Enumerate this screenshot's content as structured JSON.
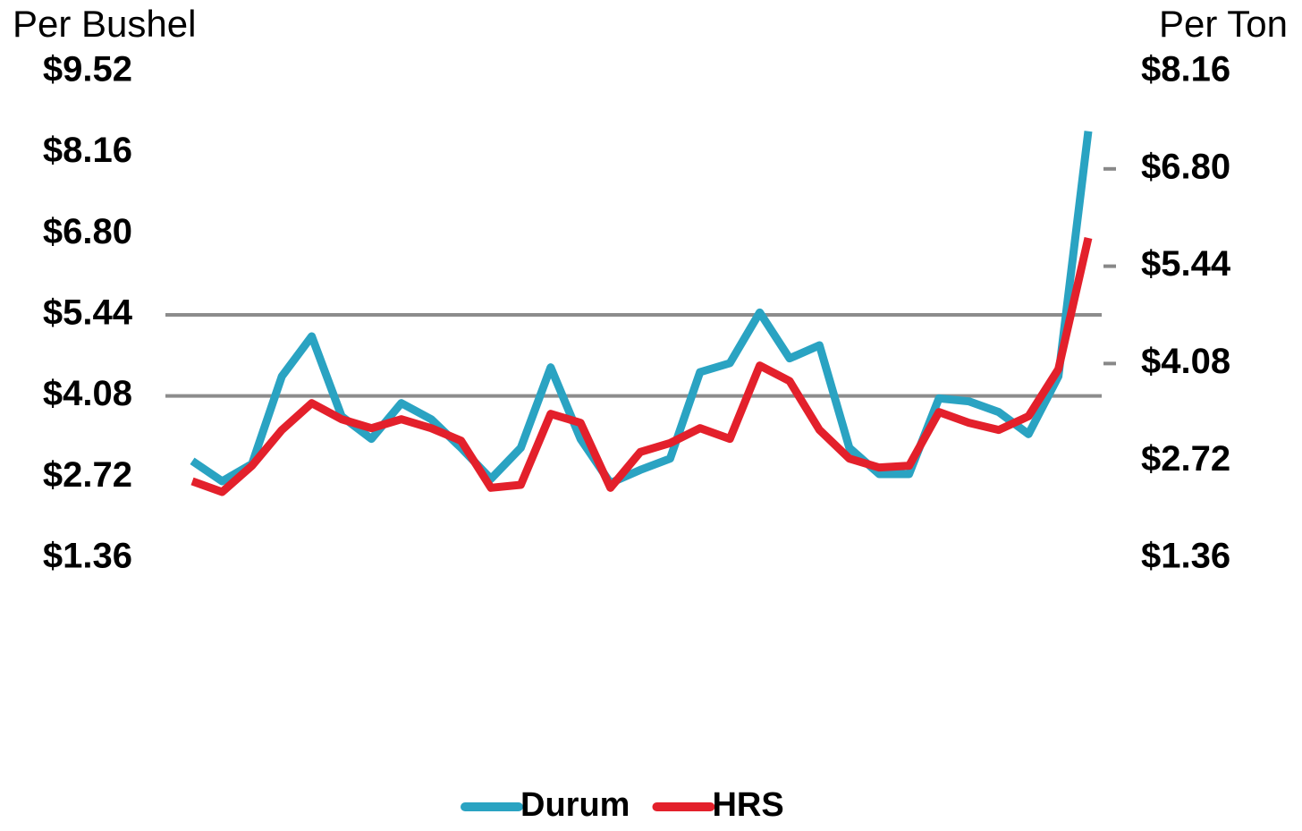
{
  "chart_data": {
    "type": "line",
    "y_label": "Per Bushel",
    "y2_label": "Per Ton",
    "categories": [
      null,
      null,
      null,
      null,
      null,
      null,
      null,
      null,
      null,
      null,
      null,
      null,
      null,
      null,
      null,
      null,
      null,
      null,
      null,
      null,
      null,
      null,
      null,
      null,
      null,
      null,
      null,
      null,
      null,
      null,
      null
    ],
    "ylim": [
      1.36,
      9.52
    ],
    "yticks": [
      {
        "value": 1.36,
        "label": "$1.36"
      },
      {
        "value": 2.72,
        "label": "$2.72"
      },
      {
        "value": 4.08,
        "label": "$4.08"
      },
      {
        "value": 5.44,
        "label": "$5.44"
      },
      {
        "value": 6.8,
        "label": "$6.80"
      },
      {
        "value": 8.16,
        "label": "$8.16"
      },
      {
        "value": 9.52,
        "label": "$9.52"
      }
    ],
    "y2lim": [
      1.36,
      8.16
    ],
    "y2ticks": [
      {
        "value": 1.36,
        "label": "$1.36"
      },
      {
        "value": 2.72,
        "label": "$2.72"
      },
      {
        "value": 4.08,
        "label": "$4.08"
      },
      {
        "value": 5.44,
        "label": "$5.44"
      },
      {
        "value": 6.8,
        "label": "$6.80"
      },
      {
        "value": 8.16,
        "label": "$8.16"
      }
    ],
    "ygrid": [
      4.08,
      5.44
    ],
    "legend": "bottom",
    "series": [
      {
        "name": "Durum",
        "color": "#2aa3c2",
        "values": [
          2.99,
          2.65,
          2.94,
          4.41,
          5.08,
          3.74,
          3.36,
          3.96,
          3.69,
          3.21,
          2.69,
          3.21,
          4.56,
          3.36,
          2.62,
          2.84,
          3.03,
          4.48,
          4.63,
          5.48,
          4.71,
          4.93,
          3.21,
          2.77,
          2.77,
          4.04,
          3.99,
          3.81,
          3.44,
          4.41,
          8.52
        ]
      },
      {
        "name": "HRS",
        "color": "#e3202b",
        "values": [
          2.65,
          2.47,
          2.91,
          3.51,
          3.96,
          3.69,
          3.54,
          3.69,
          3.54,
          3.33,
          2.54,
          2.59,
          3.78,
          3.63,
          2.54,
          3.14,
          3.29,
          3.54,
          3.36,
          4.59,
          4.33,
          3.51,
          3.03,
          2.88,
          2.91,
          3.81,
          3.63,
          3.51,
          3.74,
          4.53,
          6.73
        ]
      }
    ]
  }
}
